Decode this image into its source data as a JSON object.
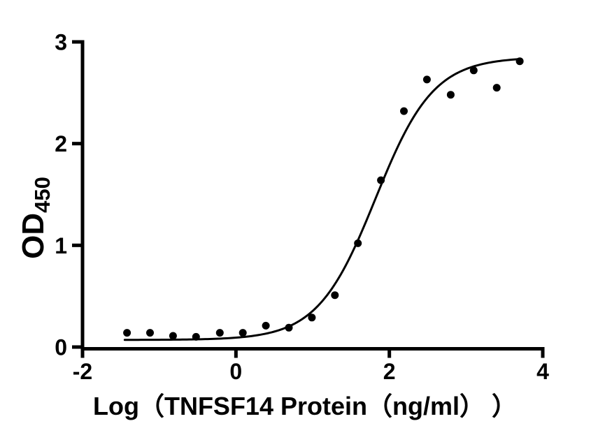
{
  "figure": {
    "background": "#ffffff",
    "ink_color": "#000000"
  },
  "chart_data": {
    "type": "scatter",
    "title": "",
    "xlabel": "Log（TNFSF14 Protein（ng/ml） ）",
    "ylabel_main": "OD",
    "ylabel_sub": "450",
    "xlim": [
      -2,
      4
    ],
    "ylim": [
      0,
      3
    ],
    "x_ticks": [
      "-2",
      "0",
      "2",
      "4"
    ],
    "x_tick_values": [
      -2,
      0,
      2,
      4
    ],
    "y_ticks": [
      "0",
      "1",
      "2",
      "3"
    ],
    "y_tick_values": [
      0,
      1,
      2,
      3
    ],
    "grid": false,
    "legend": "none",
    "points": {
      "x": [
        -1.42,
        -1.12,
        -0.82,
        -0.52,
        -0.21,
        0.09,
        0.39,
        0.69,
        0.99,
        1.29,
        1.59,
        1.89,
        2.19,
        2.49,
        2.8,
        3.1,
        3.4,
        3.7
      ],
      "y": [
        0.14,
        0.14,
        0.11,
        0.1,
        0.14,
        0.14,
        0.21,
        0.19,
        0.29,
        0.51,
        1.02,
        1.64,
        2.32,
        2.63,
        2.48,
        2.72,
        2.55,
        2.81
      ]
    },
    "fit_curve": {
      "model": "4PL-logistic",
      "bottom": 0.07,
      "top": 2.85,
      "logEC50": 1.82,
      "hillslope": 1.15,
      "x_range": [
        -1.45,
        3.7
      ]
    },
    "style": {
      "point_radius": 5.5,
      "curve_width": 3,
      "axis_width": 5,
      "tick_length": 15
    }
  }
}
